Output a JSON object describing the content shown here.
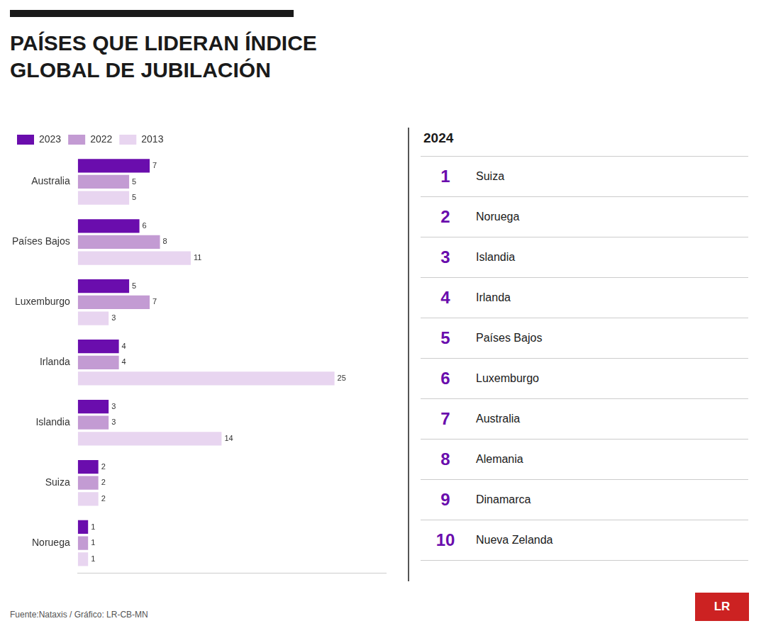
{
  "chart_data": {
    "type": "bar",
    "orientation": "horizontal",
    "title": [
      "PAÍSES QUE LIDERAN ÍNDICE",
      "GLOBAL DE JUBILACIÓN"
    ],
    "categories": [
      "Noruega",
      "Suiza",
      "Islandia",
      "Irlanda",
      "Luxemburgo",
      "Países Bajos",
      "Australia"
    ],
    "series": [
      {
        "name": "2023",
        "color": "#6a0dad",
        "values": [
          1,
          2,
          3,
          4,
          5,
          6,
          7
        ]
      },
      {
        "name": "2022",
        "color": "#c39bd3",
        "values": [
          1,
          2,
          3,
          4,
          7,
          8,
          5
        ]
      },
      {
        "name": "2013",
        "color": "#e8d5f0",
        "values": [
          1,
          2,
          14,
          25,
          3,
          11,
          5
        ]
      }
    ],
    "xlim": [
      0,
      30
    ],
    "tick_labels": "y",
    "grid": false,
    "legend": "upper left",
    "data_labels": true,
    "ranking": {
      "title": "2024",
      "ranks": [
        1,
        2,
        3,
        4,
        5,
        6,
        7,
        8,
        9,
        10
      ],
      "names": [
        "Suiza",
        "Noruega",
        "Islandia",
        "Irlanda",
        "Países Bajos",
        "Luxemburgo",
        "Australia",
        "Alemania",
        "Dinamarca",
        "Nueva Zelanda"
      ]
    },
    "annotations": [
      {
        "text": "Fuente:Nataxis  /  Gráfico: LR-CB-MN"
      },
      {
        "text": "LR"
      }
    ]
  }
}
